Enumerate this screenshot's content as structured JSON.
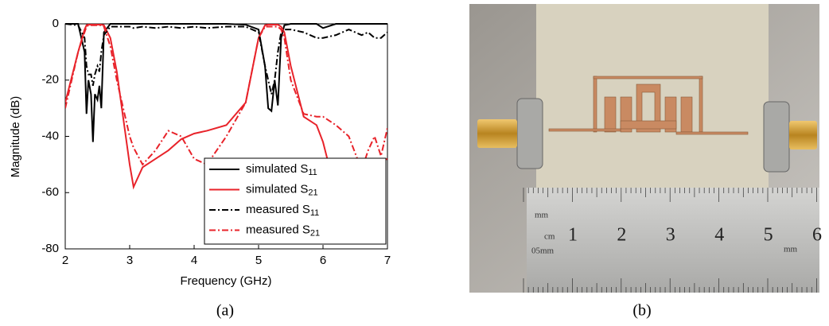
{
  "chart_data": {
    "type": "line",
    "xlabel": "Frequency (GHz)",
    "ylabel": "Magnitude (dB)",
    "caption": "(a)",
    "x": [
      2.0,
      2.2,
      2.3,
      2.33,
      2.36,
      2.4,
      2.43,
      2.46,
      2.5,
      2.53,
      2.56,
      2.6,
      2.7,
      2.8,
      3.0,
      3.06,
      3.2,
      3.4,
      3.6,
      3.8,
      4.0,
      4.2,
      4.5,
      4.8,
      5.0,
      5.1,
      5.15,
      5.2,
      5.25,
      5.3,
      5.35,
      5.4,
      5.5,
      5.7,
      5.9,
      6.0,
      6.2,
      6.4,
      6.6,
      6.7,
      6.8,
      6.9,
      7.0
    ],
    "series": [
      {
        "name": "simulated S11",
        "color": "#000000",
        "linestyle": "solid",
        "values": [
          0,
          0,
          -10,
          -32,
          -20,
          -25,
          -42,
          -25,
          -27,
          -22,
          -30,
          -3,
          0,
          0,
          0,
          0,
          0,
          0,
          0,
          0,
          0,
          0,
          0,
          -0.3,
          -2,
          -15,
          -30,
          -31,
          -20,
          -29,
          -5,
          -0.5,
          0,
          0,
          0,
          -1.5,
          0,
          0,
          0,
          0,
          0,
          0,
          0
        ]
      },
      {
        "name": "simulated S21",
        "color": "#e8232a",
        "linestyle": "solid",
        "values": [
          -28,
          -10,
          -2,
          -0.5,
          -0.3,
          -0.3,
          -0.3,
          -0.3,
          -0.3,
          -0.3,
          -0.3,
          -0.5,
          -5,
          -17,
          -50,
          -58,
          -51,
          -48,
          -45,
          -41,
          -39,
          -38,
          -36,
          -28,
          -5,
          -0.5,
          -0.3,
          -0.3,
          -0.3,
          -0.3,
          -1,
          -3,
          -15,
          -33,
          -36,
          -42,
          -60,
          -49,
          -49,
          -50,
          -50,
          -49,
          -48
        ]
      },
      {
        "name": "measured S11",
        "color": "#000000",
        "linestyle": "dashdot",
        "values": [
          0,
          -0.5,
          -5,
          -15,
          -18,
          -18,
          -22,
          -18,
          -15,
          -17,
          -10,
          -4,
          -1,
          -1,
          -1,
          -1.5,
          -1,
          -1.5,
          -1,
          -1.5,
          -1,
          -1.5,
          -1,
          -1,
          -3,
          -15,
          -20,
          -25,
          -20,
          -10,
          -3,
          -2,
          -2,
          -3,
          -5,
          -5,
          -4,
          -2,
          -4,
          -3,
          -5,
          -5,
          -3
        ]
      },
      {
        "name": "measured S21",
        "color": "#e8232a",
        "linestyle": "dashdot",
        "values": [
          -30,
          -10,
          -3,
          -1,
          -0.5,
          -0.5,
          -0.5,
          -0.5,
          -0.5,
          -0.5,
          -0.5,
          -1,
          -8,
          -20,
          -40,
          -44,
          -50,
          -45,
          -38,
          -40,
          -48,
          -50,
          -40,
          -28,
          -5,
          -1,
          -1,
          -1,
          -1,
          -1,
          -2,
          -5,
          -20,
          -32,
          -33,
          -33,
          -36,
          -40,
          -52,
          -45,
          -40,
          -47,
          -37
        ]
      }
    ],
    "xlim": [
      2,
      7
    ],
    "ylim": [
      -80,
      0
    ],
    "xticks": [
      2,
      3,
      4,
      5,
      6,
      7
    ],
    "yticks": [
      -80,
      -60,
      -40,
      -20,
      0
    ],
    "legend": "lower right"
  },
  "photo": {
    "caption": "(b)",
    "ruler_units": [
      "mm",
      "cm",
      "05mm",
      "mm"
    ],
    "ruler_numbers": [
      "1",
      "2",
      "3",
      "4",
      "5",
      "6"
    ]
  }
}
